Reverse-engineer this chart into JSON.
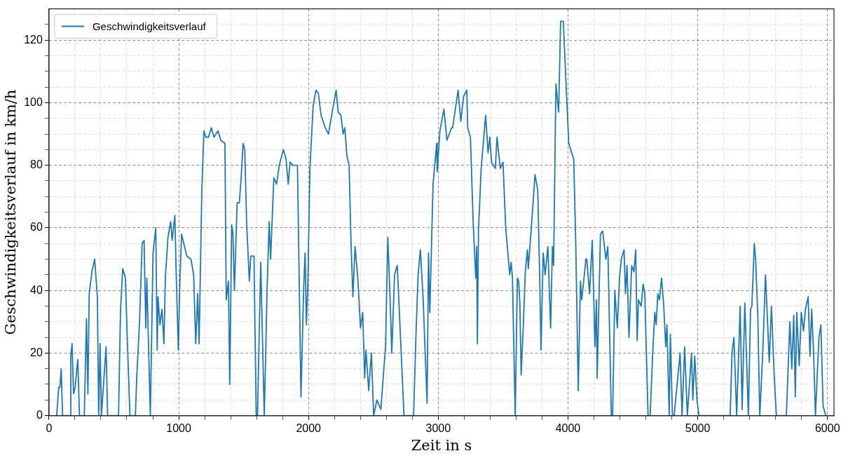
{
  "chart_data": {
    "type": "line",
    "xlabel": "Zeit in s",
    "ylabel": "Geschwindigkeitsverlauf in km/h",
    "xlim": [
      0,
      6050
    ],
    "ylim": [
      0,
      130
    ],
    "xticks": [
      0,
      {
        "value": 200,
        "label": null
      },
      {
        "value": 400,
        "label": null
      },
      {
        "value": 600,
        "label": null
      },
      {
        "value": 800,
        "label": null
      },
      1000,
      {
        "value": 1200,
        "label": null
      },
      {
        "value": 1400,
        "label": null
      },
      {
        "value": 1600,
        "label": null
      },
      {
        "value": 1800,
        "label": null
      },
      2000,
      {
        "value": 2200,
        "label": null
      },
      {
        "value": 2400,
        "label": null
      },
      {
        "value": 2600,
        "label": null
      },
      {
        "value": 2800,
        "label": null
      },
      3000,
      {
        "value": 3200,
        "label": null
      },
      {
        "value": 3400,
        "label": null
      },
      {
        "value": 3600,
        "label": null
      },
      {
        "value": 3800,
        "label": null
      },
      4000,
      {
        "value": 4200,
        "label": null
      },
      {
        "value": 4400,
        "label": null
      },
      {
        "value": 4600,
        "label": null
      },
      {
        "value": 4800,
        "label": null
      },
      5000,
      {
        "value": 5200,
        "label": null
      },
      {
        "value": 5400,
        "label": null
      },
      {
        "value": 5600,
        "label": null
      },
      {
        "value": 5800,
        "label": null
      },
      6000
    ],
    "yticks": [
      0,
      {
        "value": 5,
        "label": null
      },
      {
        "value": 10,
        "label": null
      },
      {
        "value": 15,
        "label": null
      },
      20,
      {
        "value": 25,
        "label": null
      },
      {
        "value": 30,
        "label": null
      },
      {
        "value": 35,
        "label": null
      },
      40,
      {
        "value": 45,
        "label": null
      },
      {
        "value": 50,
        "label": null
      },
      {
        "value": 55,
        "label": null
      },
      60,
      {
        "value": 65,
        "label": null
      },
      {
        "value": 70,
        "label": null
      },
      {
        "value": 75,
        "label": null
      },
      80,
      {
        "value": 85,
        "label": null
      },
      {
        "value": 90,
        "label": null
      },
      {
        "value": 95,
        "label": null
      },
      100,
      {
        "value": 105,
        "label": null
      },
      {
        "value": 110,
        "label": null
      },
      {
        "value": 115,
        "label": null
      },
      120,
      {
        "value": 125,
        "label": null
      }
    ],
    "grid": true,
    "legend": "top left",
    "line_style": "solid",
    "marker": "none",
    "series": [
      {
        "name": "Geschwindigkeitsverlauf",
        "color": "#1f77b4",
        "x": [
          59,
          75,
          84,
          94,
          105,
          163,
          168,
          178,
          189,
          201,
          222,
          235,
          272,
          289,
          300,
          310,
          331,
          352,
          373,
          383,
          394,
          404,
          440,
          452,
          536,
          551,
          568,
          589,
          603,
          624,
          666,
          677,
          698,
          718,
          733,
          746,
          754,
          781,
          802,
          823,
          834,
          840,
          855,
          871,
          886,
          897,
          917,
          938,
          949,
          970,
          980,
          997,
          1008,
          1022,
          1039,
          1062,
          1094,
          1115,
          1131,
          1146,
          1157,
          1178,
          1194,
          1209,
          1230,
          1251,
          1272,
          1303,
          1324,
          1356,
          1366,
          1383,
          1393,
          1408,
          1418,
          1429,
          1450,
          1467,
          1481,
          1496,
          1509,
          1523,
          1544,
          1555,
          1580,
          1597,
          1607,
          1632,
          1659,
          1670,
          1680,
          1697,
          1708,
          1733,
          1754,
          1775,
          1806,
          1827,
          1844,
          1858,
          1879,
          1900,
          1915,
          1942,
          1963,
          1974,
          1984,
          1995,
          2011,
          2036,
          2057,
          2076,
          2097,
          2129,
          2154,
          2187,
          2213,
          2229,
          2250,
          2267,
          2280,
          2296,
          2313,
          2328,
          2342,
          2359,
          2380,
          2401,
          2418,
          2433,
          2443,
          2464,
          2485,
          2502,
          2527,
          2558,
          2579,
          2594,
          2611,
          2627,
          2642,
          2663,
          2684,
          2705,
          2736,
          2810,
          2830,
          2845,
          2862,
          2883,
          2914,
          2925,
          2935,
          2960,
          2988,
          2992,
          3013,
          3044,
          3067,
          3103,
          3111,
          3153,
          3174,
          3195,
          3220,
          3227,
          3248,
          3269,
          3289,
          3296,
          3302,
          3310,
          3331,
          3365,
          3384,
          3398,
          3411,
          3440,
          3453,
          3478,
          3499,
          3520,
          3551,
          3562,
          3572,
          3593,
          3610,
          3620,
          3629,
          3639,
          3656,
          3671,
          3687,
          3694,
          3719,
          3746,
          3767,
          3782,
          3792,
          3809,
          3824,
          3845,
          3866,
          3880,
          3889,
          3907,
          3928,
          3943,
          3964,
          3985,
          4006,
          4044,
          4060,
          4079,
          4096,
          4106,
          4138,
          4145,
          4166,
          4187,
          4208,
          4219,
          4225,
          4250,
          4267,
          4292,
          4307,
          4334,
          4344,
          4361,
          4380,
          4397,
          4411,
          4432,
          4443,
          4455,
          4470,
          4491,
          4508,
          4522,
          4533,
          4543,
          4564,
          4579,
          4592,
          4617,
          4633,
          4654,
          4669,
          4680,
          4692,
          4705,
          4721,
          4738,
          4753,
          4763,
          4780,
          4789,
          4805,
          4818,
          4864,
          4879,
          4899,
          4920,
          4952,
          4962,
          4977,
          4994,
          5010,
          5250,
          5264,
          5279,
          5300,
          5327,
          5342,
          5363,
          5390,
          5407,
          5417,
          5436,
          5446,
          5463,
          5478,
          5501,
          5522,
          5537,
          5551,
          5568,
          5589,
          5606,
          5683,
          5710,
          5725,
          5740,
          5752,
          5763,
          5782,
          5798,
          5815,
          5830,
          5851,
          5865,
          5878,
          5893,
          5907,
          5934,
          5949,
          5966,
          5987
        ],
        "values": [
          0,
          9,
          9,
          15,
          0,
          0,
          19,
          23,
          7,
          9,
          18,
          0,
          0,
          31,
          7,
          39,
          46,
          50,
          38,
          0,
          23,
          0,
          22,
          0,
          0,
          33,
          47,
          44,
          25,
          0,
          0,
          13,
          30,
          55,
          56,
          28,
          44,
          0,
          52,
          60,
          21,
          38,
          29,
          34,
          23,
          44,
          57,
          62,
          56,
          64,
          46,
          21,
          42,
          58,
          55,
          51,
          50,
          45,
          23,
          39,
          23,
          72,
          91,
          89,
          89,
          92,
          89,
          91,
          88,
          87,
          37,
          43,
          10,
          61,
          58,
          40,
          68,
          68,
          76,
          87,
          85,
          62,
          43,
          51,
          51,
          0,
          0,
          49,
          0,
          19,
          39,
          62,
          50,
          76,
          74,
          80,
          85,
          82,
          74,
          81,
          80,
          80,
          80,
          6,
          41,
          52,
          29,
          42,
          79,
          99,
          104,
          103,
          96,
          92,
          90,
          98,
          104,
          97,
          96,
          90,
          92,
          83,
          80,
          55,
          38,
          54,
          44,
          28,
          33,
          12,
          21,
          8,
          20,
          0,
          5,
          2,
          14,
          22,
          57,
          40,
          20,
          45,
          48,
          29,
          0,
          0,
          28,
          45,
          53,
          38,
          4,
          52,
          33,
          74,
          87,
          78,
          91,
          98,
          88,
          92,
          92,
          104,
          94,
          102,
          104,
          92,
          89,
          62,
          44,
          54,
          23,
          59,
          79,
          96,
          84,
          89,
          81,
          79,
          89,
          79,
          81,
          60,
          45,
          49,
          44,
          0,
          44,
          43,
          36,
          13,
          29,
          46,
          53,
          47,
          61,
          77,
          72,
          44,
          21,
          52,
          45,
          54,
          28,
          54,
          48,
          106,
          97,
          126,
          126,
          106,
          87,
          82,
          55,
          8,
          43,
          37,
          50,
          50,
          39,
          56,
          22,
          37,
          12,
          58,
          59,
          50,
          54,
          0,
          0,
          40,
          28,
          44,
          50,
          53,
          39,
          48,
          25,
          48,
          46,
          53,
          24,
          37,
          35,
          42,
          39,
          0,
          0,
          21,
          33,
          29,
          39,
          37,
          44,
          35,
          22,
          29,
          0,
          26,
          0,
          0,
          20,
          0,
          22,
          0,
          20,
          5,
          19,
          5,
          0,
          0,
          20,
          25,
          0,
          35,
          2,
          36,
          0,
          34,
          35,
          55,
          50,
          32,
          0,
          20,
          45,
          31,
          17,
          35,
          13,
          0,
          0,
          30,
          15,
          32,
          6,
          33,
          16,
          33,
          27,
          34,
          38,
          19,
          34,
          20,
          0,
          25,
          29,
          3,
          0
        ]
      }
    ]
  }
}
